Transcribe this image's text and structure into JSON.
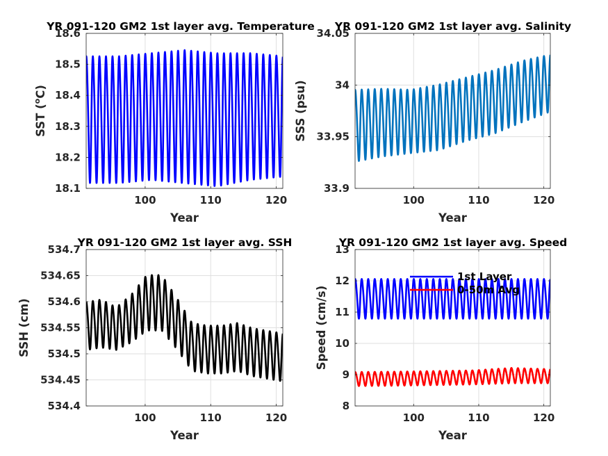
{
  "chart_data": [
    {
      "id": "temperature",
      "type": "line",
      "title": "YR 091-120 GM2 1st layer avg. Temperature",
      "xlabel": "Year",
      "ylabel": "SST (",
      "ylabel_sup": "o",
      "ylabel_tail": "C)",
      "xlim": [
        91,
        121
      ],
      "ylim": [
        18.1,
        18.6
      ],
      "xticks": [
        100,
        110,
        120
      ],
      "yticks": [
        "18.1",
        "18.2",
        "18.3",
        "18.4",
        "18.5",
        "18.6"
      ],
      "grid": true,
      "series": [
        {
          "color": "#0000ff",
          "x_start": 91,
          "x_end": 121,
          "cycles_per_year": 1,
          "mean_level": [
            18.33,
            18.33,
            18.34,
            18.34,
            18.33,
            18.34,
            18.34
          ],
          "amplitude": [
            0.2,
            0.2,
            0.2,
            0.21,
            0.21,
            0.2,
            0.19
          ]
        }
      ]
    },
    {
      "id": "salinity",
      "type": "line",
      "title": "YR 091-120 GM2 1st layer avg. Salinity",
      "xlabel": "Year",
      "ylabel": "SSS (psu)",
      "xlim": [
        91,
        121
      ],
      "ylim": [
        33.9,
        34.05
      ],
      "xticks": [
        100,
        110,
        120
      ],
      "yticks": [
        "33.9",
        "33.95",
        "34",
        "34.05"
      ],
      "grid": true,
      "series": [
        {
          "color": "#0072bd",
          "x_start": 91,
          "x_end": 121,
          "cycles_per_year": 1,
          "mean_level": [
            33.962,
            33.965,
            33.966,
            33.97,
            33.978,
            33.985,
            33.995,
            34.003
          ],
          "amplitude": [
            0.034,
            0.032,
            0.03,
            0.031,
            0.03,
            0.03,
            0.029,
            0.027
          ]
        }
      ]
    },
    {
      "id": "ssh",
      "type": "line",
      "title": "YR 091-120 GM2 1st layer avg. SSH",
      "xlabel": "Year",
      "ylabel": "SSH (cm)",
      "xlim": [
        91,
        121
      ],
      "ylim": [
        534.4,
        534.7
      ],
      "xticks": [
        100,
        110,
        120
      ],
      "yticks": [
        "534.4",
        "534.45",
        "534.5",
        "534.55",
        "534.6",
        "534.65",
        "534.7"
      ],
      "grid": true,
      "series": [
        {
          "color": "#000000",
          "x_start": 91,
          "x_end": 121,
          "cycles_per_year": 1,
          "mean_level": [
            534.555,
            534.56,
            534.55,
            534.57,
            534.6,
            534.6,
            534.56,
            534.515,
            534.51,
            534.51,
            534.515,
            534.505,
            534.5,
            534.495
          ],
          "amplitude": [
            0.045,
            0.045,
            0.04,
            0.045,
            0.052,
            0.052,
            0.048,
            0.045,
            0.045,
            0.045,
            0.045,
            0.045,
            0.045,
            0.045
          ]
        }
      ]
    },
    {
      "id": "speed",
      "type": "line",
      "title": "YR 091-120 GM2 1st layer avg. Speed",
      "xlabel": "Year",
      "ylabel": "Speed (cm/s)",
      "xlim": [
        91,
        121
      ],
      "ylim": [
        8,
        13
      ],
      "xticks": [
        100,
        110,
        120
      ],
      "yticks": [
        "8",
        "9",
        "10",
        "11",
        "12",
        "13"
      ],
      "grid": true,
      "legend": {
        "placement": "top-center",
        "entries": [
          "1st Layer",
          "0-50m Avg"
        ]
      },
      "series": [
        {
          "name": "1st Layer",
          "color": "#0000ff",
          "x_start": 91,
          "x_end": 121,
          "cycles_per_year": 1,
          "mean_level": [
            11.45,
            11.45,
            11.45,
            11.45,
            11.45
          ],
          "amplitude": [
            0.62,
            0.62,
            0.62,
            0.62,
            0.62
          ]
        },
        {
          "name": "0-50m Avg",
          "color": "#ff0000",
          "x_start": 91,
          "x_end": 121,
          "cycles_per_year": 1,
          "mean_level": [
            8.87,
            8.88,
            8.9,
            8.92,
            8.98,
            8.96
          ],
          "amplitude": [
            0.22,
            0.22,
            0.22,
            0.22,
            0.24,
            0.22
          ]
        }
      ]
    }
  ]
}
